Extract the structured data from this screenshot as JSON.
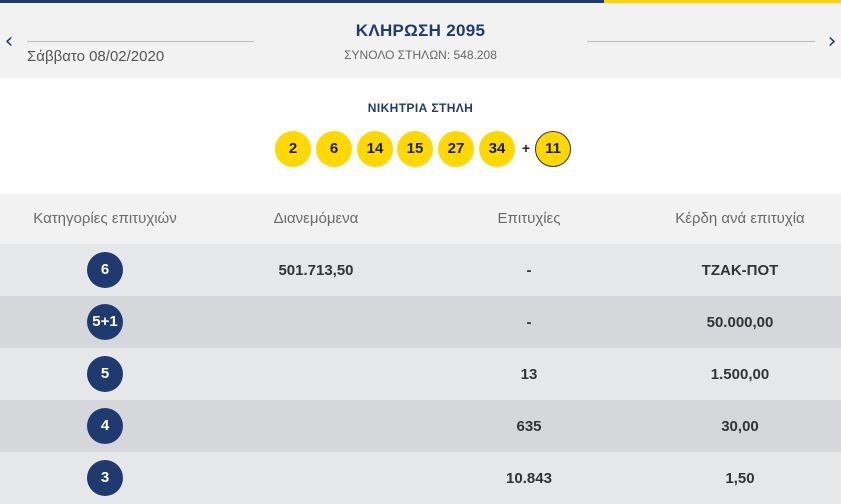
{
  "draw": {
    "title": "ΚΛΗΡΩΣΗ 2095",
    "date": "Σάββατο 08/02/2020",
    "total_columns": "ΣΥΝΟΛΟ ΣΤΗΛΩΝ: 548.208",
    "prev_icon": "‹",
    "next_icon": "›"
  },
  "winning": {
    "label": "ΝΙΚΗΤΡΙΑ ΣΤΗΛΗ",
    "numbers": [
      "2",
      "6",
      "14",
      "15",
      "27",
      "34"
    ],
    "plus": "+",
    "joker": "11"
  },
  "table": {
    "headers": [
      "Κατηγορίες επιτυχιών",
      "Διανεμόμενα",
      "Επιτυχίες",
      "Κέρδη ανά επιτυχία"
    ],
    "rows": [
      {
        "category": "6",
        "distributed": "501.713,50",
        "winners": "-",
        "prize": "ΤΖΑΚ-ΠΟΤ"
      },
      {
        "category": "5+1",
        "distributed": "",
        "winners": "-",
        "prize": "50.000,00"
      },
      {
        "category": "5",
        "distributed": "",
        "winners": "13",
        "prize": "1.500,00"
      },
      {
        "category": "4",
        "distributed": "",
        "winners": "635",
        "prize": "30,00"
      },
      {
        "category": "3",
        "distributed": "",
        "winners": "10.843",
        "prize": "1,50"
      }
    ]
  },
  "colors": {
    "brand_blue": "#1f3a6e",
    "ball_yellow": "#ffd800",
    "row_light": "#e6e7e9",
    "row_dark": "#d6d7da"
  }
}
